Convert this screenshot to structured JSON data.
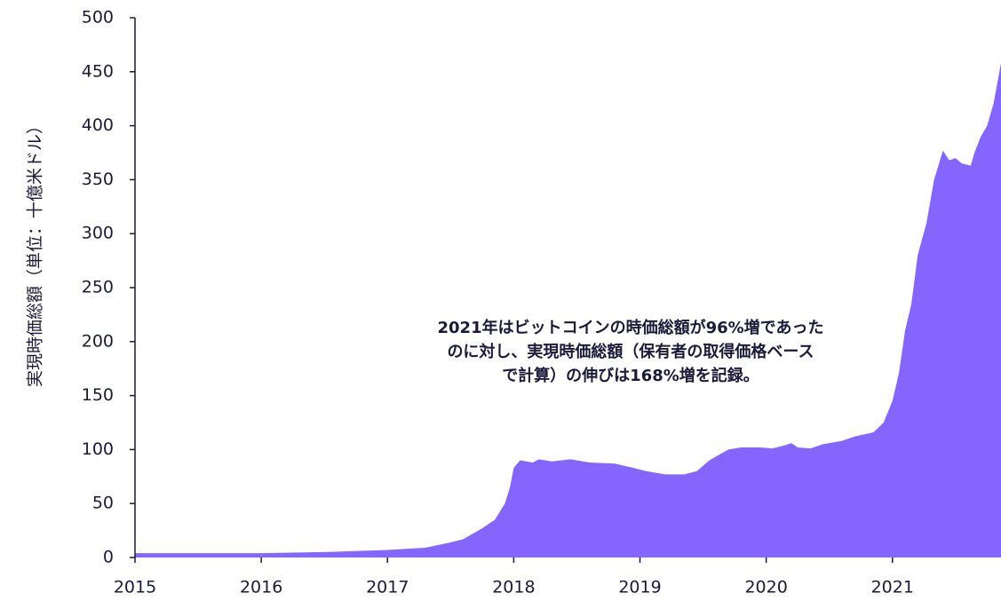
{
  "chart_data": {
    "type": "area",
    "y_label": "実現時価総額（単位：十億米ドル）",
    "annotation": [
      "2021年はビットコインの時価総額が96%増であった",
      "のに対し、実現時価総額（保有者の取得価格ベース",
      "で計算）の伸びは168%増を記録。"
    ],
    "color": "#8466ff",
    "x": [
      2015.0,
      2015.5,
      2016.0,
      2016.5,
      2017.0,
      2017.3,
      2017.5,
      2017.6,
      2017.75,
      2017.85,
      2017.93,
      2017.97,
      2018.0,
      2018.05,
      2018.15,
      2018.2,
      2018.3,
      2018.45,
      2018.6,
      2018.8,
      2018.95,
      2019.05,
      2019.2,
      2019.35,
      2019.45,
      2019.55,
      2019.7,
      2019.8,
      2019.95,
      2020.05,
      2020.15,
      2020.2,
      2020.25,
      2020.35,
      2020.45,
      2020.6,
      2020.7,
      2020.85,
      2020.93,
      2021.0,
      2021.05,
      2021.1,
      2021.15,
      2021.2,
      2021.27,
      2021.33,
      2021.4,
      2021.45,
      2021.5,
      2021.55,
      2021.62,
      2021.65,
      2021.7,
      2021.75,
      2021.8,
      2021.86
    ],
    "values": [
      4,
      4,
      4,
      5,
      7,
      9,
      14,
      17,
      27,
      35,
      50,
      65,
      83,
      90,
      88,
      91,
      89,
      91,
      88,
      87,
      83,
      80,
      77,
      77,
      80,
      90,
      100,
      102,
      102,
      101,
      104,
      106,
      102,
      101,
      105,
      108,
      112,
      116,
      125,
      145,
      170,
      210,
      235,
      280,
      310,
      350,
      377,
      368,
      370,
      365,
      363,
      375,
      390,
      400,
      420,
      458
    ],
    "xlim": [
      2015,
      2021.86
    ],
    "xticks": [
      2015,
      2016,
      2017,
      2018,
      2019,
      2020,
      2021
    ],
    "ylim": [
      0,
      500
    ],
    "yticks": [
      0,
      50,
      100,
      150,
      200,
      250,
      300,
      350,
      400,
      450,
      500
    ]
  }
}
